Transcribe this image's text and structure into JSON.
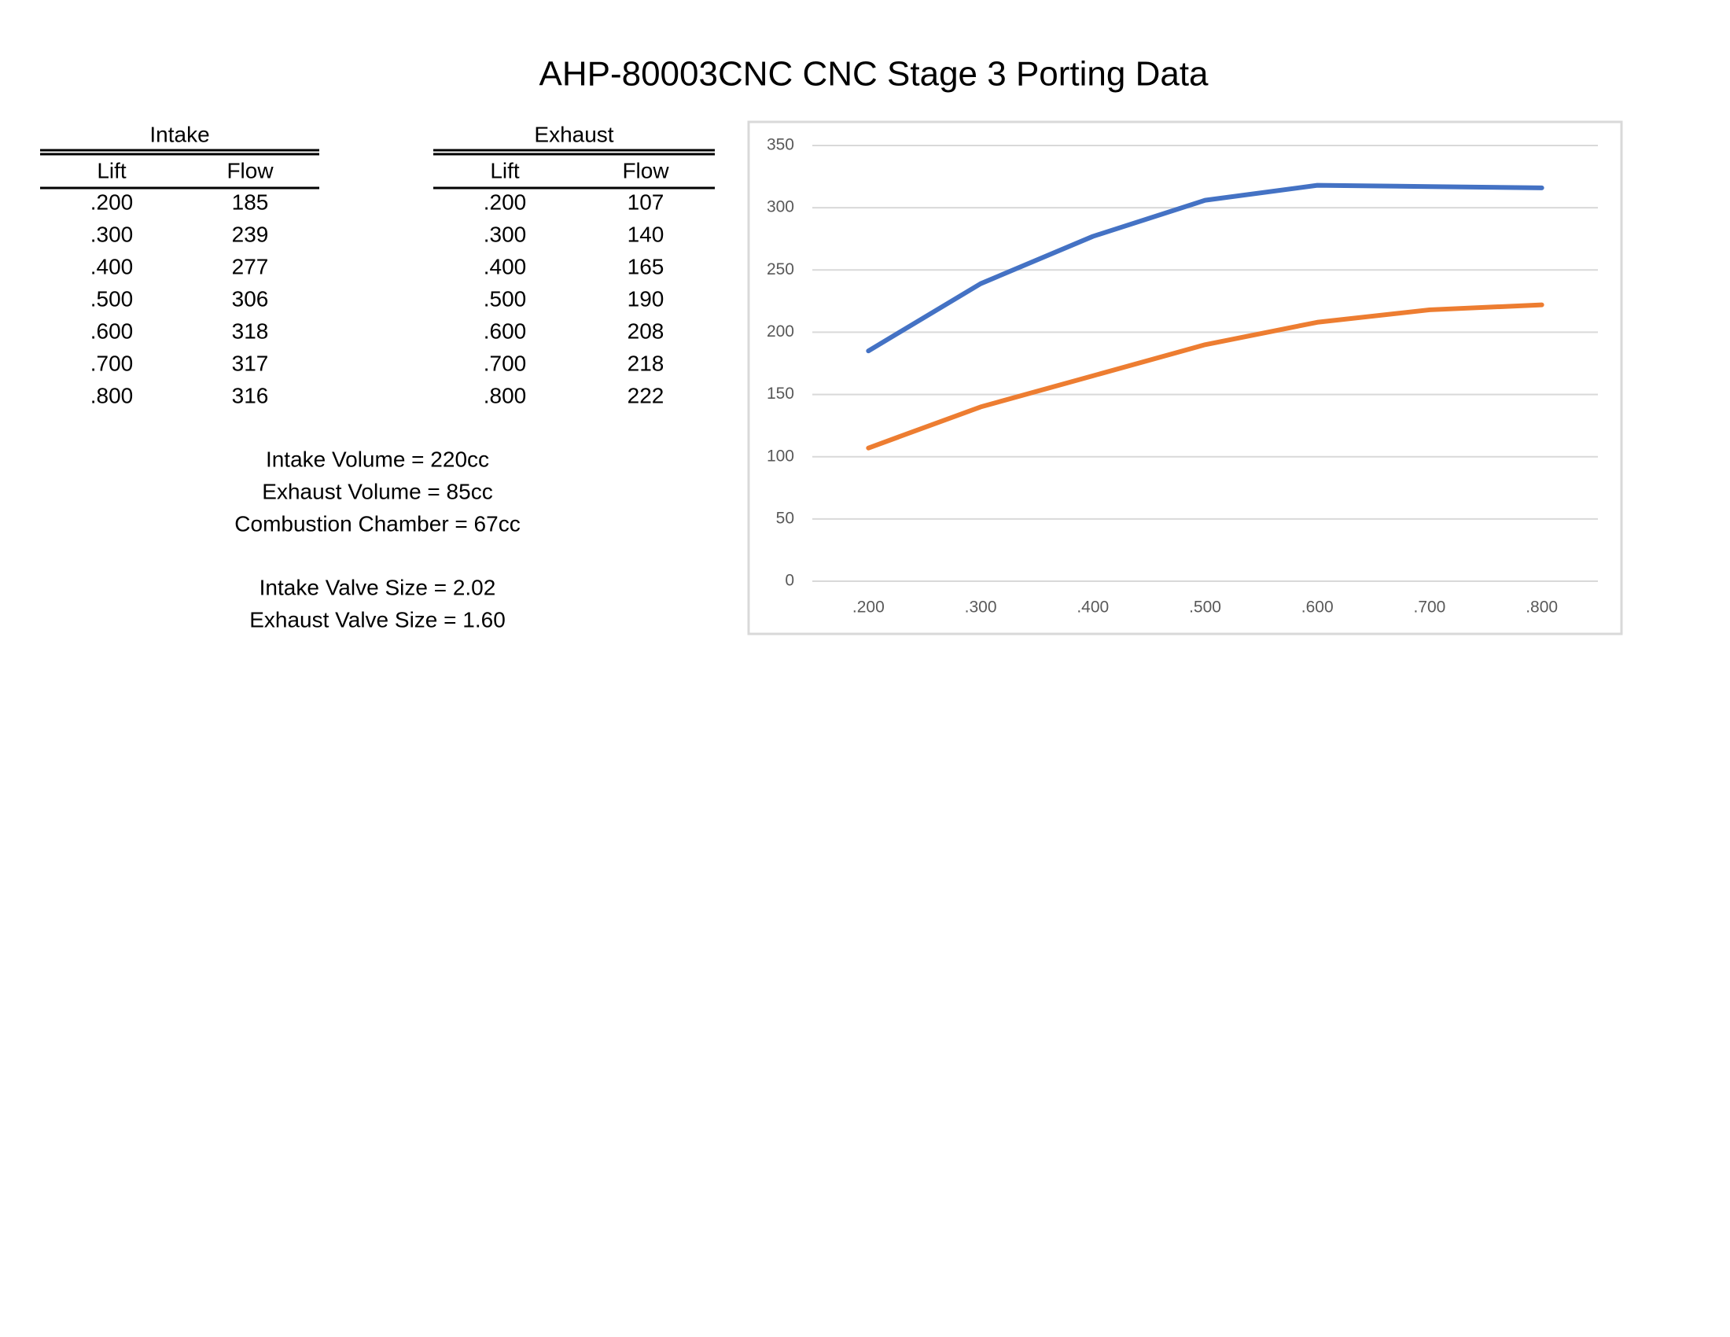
{
  "title": "AHP-80003CNC  CNC Stage 3 Porting Data",
  "tables": [
    {
      "title": "Intake",
      "columns": [
        "Lift",
        "Flow"
      ],
      "rows": [
        [
          ".200",
          185
        ],
        [
          ".300",
          239
        ],
        [
          ".400",
          277
        ],
        [
          ".500",
          306
        ],
        [
          ".600",
          318
        ],
        [
          ".700",
          317
        ],
        [
          ".800",
          316
        ]
      ]
    },
    {
      "title": "Exhaust",
      "columns": [
        "Lift",
        "Flow"
      ],
      "rows": [
        [
          ".200",
          107
        ],
        [
          ".300",
          140
        ],
        [
          ".400",
          165
        ],
        [
          ".500",
          190
        ],
        [
          ".600",
          208
        ],
        [
          ".700",
          218
        ],
        [
          ".800",
          222
        ]
      ]
    }
  ],
  "volumes": [
    "Intake Volume = 220cc",
    "Exhaust Volume = 85cc",
    "Combustion Chamber = 67cc"
  ],
  "valve_sizes": [
    "Intake Valve Size = 2.02",
    "Exhaust Valve Size = 1.60"
  ],
  "chart_data": {
    "type": "line",
    "categories": [
      ".200",
      ".300",
      ".400",
      ".500",
      ".600",
      ".700",
      ".800"
    ],
    "series": [
      {
        "color": "#4472c4",
        "values": [
          185,
          239,
          277,
          306,
          318,
          317,
          316
        ]
      },
      {
        "color": "#ed7d31",
        "values": [
          107,
          140,
          165,
          190,
          208,
          218,
          222
        ]
      }
    ],
    "ylim": [
      0,
      350
    ],
    "yticks": [
      0,
      50,
      100,
      150,
      200,
      250,
      300,
      350
    ],
    "grid": true
  }
}
